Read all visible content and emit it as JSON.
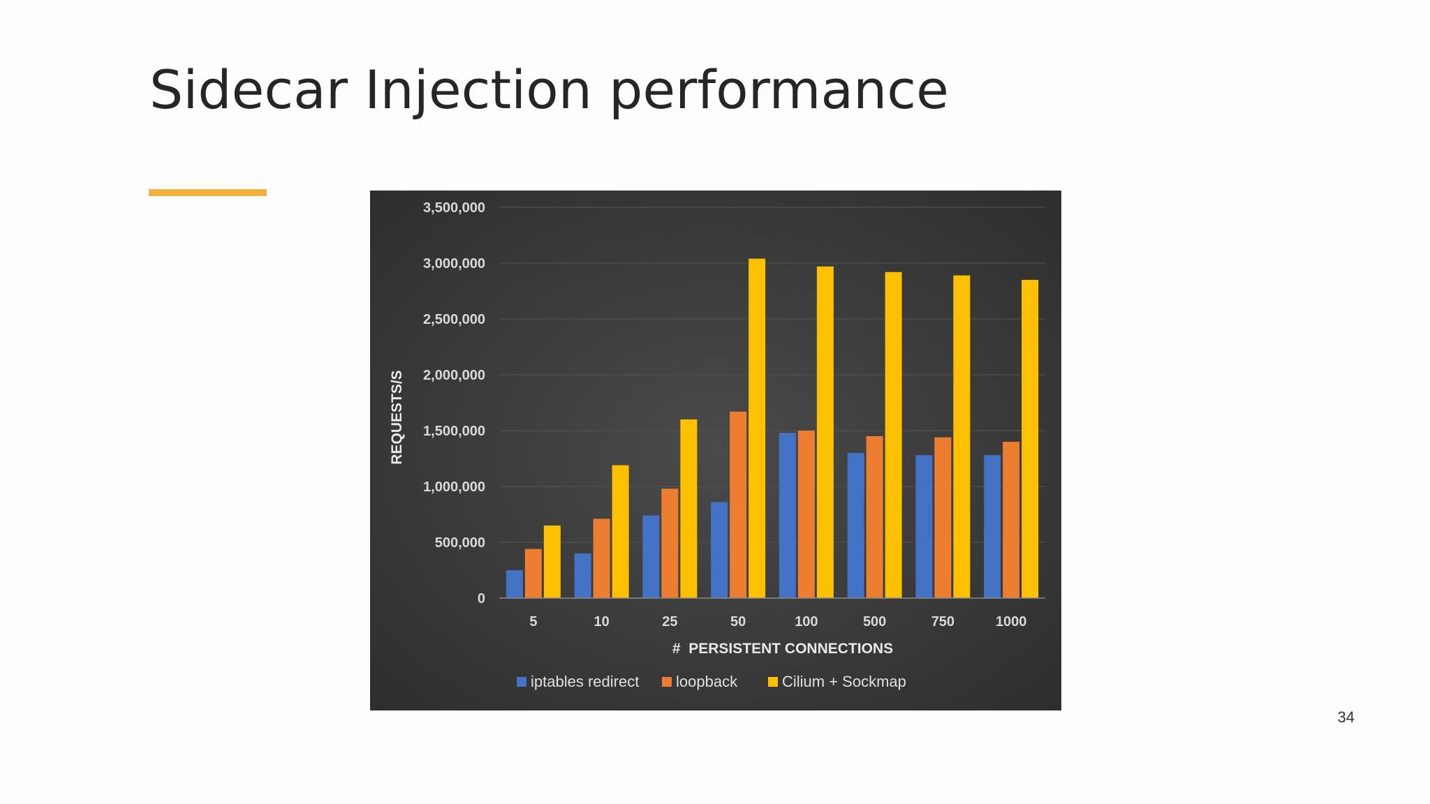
{
  "slide": {
    "title": "Sidecar Injection performance",
    "page_number": "34",
    "accent_color": "#f3b13e"
  },
  "chart_data": {
    "type": "bar",
    "categories": [
      "5",
      "10",
      "25",
      "50",
      "100",
      "500",
      "750",
      "1000"
    ],
    "series": [
      {
        "name": "iptables redirect",
        "color": "#4472c4",
        "values": [
          250000,
          400000,
          740000,
          860000,
          1480000,
          1300000,
          1280000,
          1280000
        ]
      },
      {
        "name": "loopback",
        "color": "#ed7d31",
        "values": [
          440000,
          710000,
          980000,
          1670000,
          1500000,
          1450000,
          1440000,
          1400000
        ]
      },
      {
        "name": "Cilium + Sockmap",
        "color": "#ffc000",
        "values": [
          650000,
          1190000,
          1600000,
          3040000,
          2970000,
          2920000,
          2890000,
          2850000
        ]
      }
    ],
    "xlabel": "#  PERSISTENT CONNECTIONS",
    "ylabel": "REQUESTS/S",
    "ylim": [
      0,
      3500000
    ],
    "yticks": [
      "0",
      "500,000",
      "1,000,000",
      "1,500,000",
      "2,000,000",
      "2,500,000",
      "3,000,000",
      "3,500,000"
    ],
    "grid": true,
    "legend_position": "bottom",
    "background": "#404040"
  }
}
